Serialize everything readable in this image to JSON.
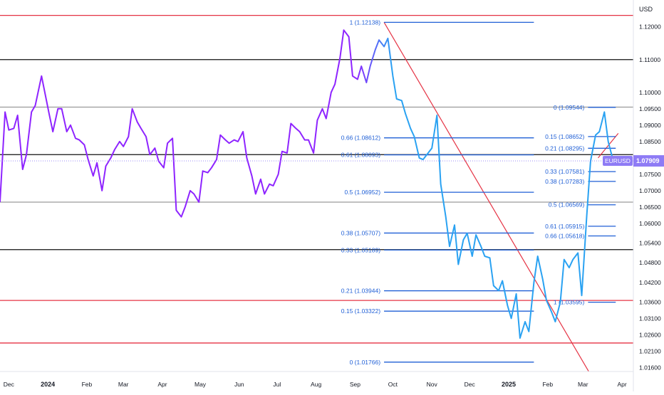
{
  "chart_data": {
    "type": "line",
    "symbol": "EURUSD",
    "currency": "USD",
    "last_price": "1.07909",
    "line_colors": {
      "start": "#8e24ff",
      "end": "#2aa2f2"
    },
    "y_axis": {
      "ylim": [
        1.0148,
        1.1282
      ],
      "ticks": [
        "1.12000",
        "1.11000",
        "1.10000",
        "1.09500",
        "1.09000",
        "1.08500",
        "1.08000",
        "1.07500",
        "1.07000",
        "1.06500",
        "1.06000",
        "1.05400",
        "1.04800",
        "1.04200",
        "1.03600",
        "1.03100",
        "1.02600",
        "1.02100",
        "1.01600"
      ]
    },
    "x_axis": {
      "xlim": [
        "2023-11-24",
        "2025-04-10"
      ],
      "ticks": [
        {
          "label": "Dec",
          "date": "2023-12-01",
          "bold": false
        },
        {
          "label": "2024",
          "date": "2024-01-01",
          "bold": true
        },
        {
          "label": "Feb",
          "date": "2024-02-01",
          "bold": false
        },
        {
          "label": "Mar",
          "date": "2024-03-01",
          "bold": false
        },
        {
          "label": "Apr",
          "date": "2024-04-01",
          "bold": false
        },
        {
          "label": "May",
          "date": "2024-05-01",
          "bold": false
        },
        {
          "label": "Jun",
          "date": "2024-06-01",
          "bold": false
        },
        {
          "label": "Jul",
          "date": "2024-07-01",
          "bold": false
        },
        {
          "label": "Aug",
          "date": "2024-08-01",
          "bold": false
        },
        {
          "label": "Sep",
          "date": "2024-09-01",
          "bold": false
        },
        {
          "label": "Oct",
          "date": "2024-10-01",
          "bold": false
        },
        {
          "label": "Nov",
          "date": "2024-11-01",
          "bold": false
        },
        {
          "label": "Dec",
          "date": "2024-12-01",
          "bold": false
        },
        {
          "label": "2025",
          "date": "2025-01-01",
          "bold": true
        },
        {
          "label": "Feb",
          "date": "2025-02-01",
          "bold": false
        },
        {
          "label": "Mar",
          "date": "2025-03-01",
          "bold": false
        },
        {
          "label": "Apr",
          "date": "2025-04-01",
          "bold": false
        }
      ]
    },
    "series": [
      {
        "points": [
          [
            "2023-11-24",
            1.0665
          ],
          [
            "2023-11-28",
            1.094
          ],
          [
            "2023-12-01",
            1.0885
          ],
          [
            "2023-12-05",
            1.089
          ],
          [
            "2023-12-08",
            1.093
          ],
          [
            "2023-12-12",
            1.0765
          ],
          [
            "2023-12-15",
            1.081
          ],
          [
            "2023-12-19",
            1.094
          ],
          [
            "2023-12-22",
            1.096
          ],
          [
            "2023-12-27",
            1.105
          ],
          [
            "2024-01-02",
            1.0935
          ],
          [
            "2024-01-05",
            1.088
          ],
          [
            "2024-01-09",
            1.095
          ],
          [
            "2024-01-12",
            1.095
          ],
          [
            "2024-01-16",
            1.088
          ],
          [
            "2024-01-19",
            1.09
          ],
          [
            "2024-01-23",
            1.086
          ],
          [
            "2024-01-26",
            1.0855
          ],
          [
            "2024-01-30",
            1.084
          ],
          [
            "2024-02-02",
            1.0795
          ],
          [
            "2024-02-06",
            1.0745
          ],
          [
            "2024-02-09",
            1.0785
          ],
          [
            "2024-02-13",
            1.07
          ],
          [
            "2024-02-16",
            1.0775
          ],
          [
            "2024-02-20",
            1.08
          ],
          [
            "2024-02-23",
            1.0825
          ],
          [
            "2024-02-27",
            1.085
          ],
          [
            "2024-03-01",
            1.0835
          ],
          [
            "2024-03-05",
            1.0865
          ],
          [
            "2024-03-08",
            1.095
          ],
          [
            "2024-03-12",
            1.091
          ],
          [
            "2024-03-15",
            1.089
          ],
          [
            "2024-03-19",
            1.0865
          ],
          [
            "2024-03-22",
            1.081
          ],
          [
            "2024-03-26",
            1.083
          ],
          [
            "2024-03-29",
            1.079
          ],
          [
            "2024-04-02",
            1.077
          ],
          [
            "2024-04-05",
            1.0845
          ],
          [
            "2024-04-09",
            1.086
          ],
          [
            "2024-04-12",
            1.064
          ],
          [
            "2024-04-16",
            1.062
          ],
          [
            "2024-04-19",
            1.065
          ],
          [
            "2024-04-23",
            1.07
          ],
          [
            "2024-04-26",
            1.069
          ],
          [
            "2024-04-30",
            1.0665
          ],
          [
            "2024-05-03",
            1.076
          ],
          [
            "2024-05-07",
            1.0755
          ],
          [
            "2024-05-10",
            1.077
          ],
          [
            "2024-05-14",
            1.0795
          ],
          [
            "2024-05-17",
            1.087
          ],
          [
            "2024-05-21",
            1.0855
          ],
          [
            "2024-05-24",
            1.0845
          ],
          [
            "2024-05-28",
            1.0855
          ],
          [
            "2024-05-31",
            1.085
          ],
          [
            "2024-06-04",
            1.088
          ],
          [
            "2024-06-07",
            1.08
          ],
          [
            "2024-06-11",
            1.0745
          ],
          [
            "2024-06-14",
            1.069
          ],
          [
            "2024-06-18",
            1.0735
          ],
          [
            "2024-06-21",
            1.069
          ],
          [
            "2024-06-25",
            1.072
          ],
          [
            "2024-06-28",
            1.0715
          ],
          [
            "2024-07-02",
            1.075
          ],
          [
            "2024-07-05",
            1.082
          ],
          [
            "2024-07-09",
            1.0815
          ],
          [
            "2024-07-12",
            1.0905
          ],
          [
            "2024-07-16",
            1.089
          ],
          [
            "2024-07-19",
            1.088
          ],
          [
            "2024-07-23",
            1.0855
          ],
          [
            "2024-07-26",
            1.0855
          ],
          [
            "2024-07-30",
            1.0815
          ],
          [
            "2024-08-02",
            1.0915
          ],
          [
            "2024-08-06",
            1.095
          ],
          [
            "2024-08-09",
            1.092
          ],
          [
            "2024-08-13",
            1.1
          ],
          [
            "2024-08-16",
            1.1025
          ],
          [
            "2024-08-20",
            1.1105
          ],
          [
            "2024-08-23",
            1.119
          ],
          [
            "2024-08-27",
            1.117
          ],
          [
            "2024-08-30",
            1.105
          ],
          [
            "2024-09-03",
            1.104
          ],
          [
            "2024-09-06",
            1.108
          ],
          [
            "2024-09-10",
            1.103
          ],
          [
            "2024-09-13",
            1.108
          ],
          [
            "2024-09-17",
            1.113
          ],
          [
            "2024-09-20",
            1.116
          ],
          [
            "2024-09-24",
            1.114
          ],
          [
            "2024-09-27",
            1.1165
          ],
          [
            "2024-10-01",
            1.105
          ],
          [
            "2024-10-04",
            1.098
          ],
          [
            "2024-10-08",
            1.0975
          ],
          [
            "2024-10-11",
            1.0935
          ],
          [
            "2024-10-15",
            1.089
          ],
          [
            "2024-10-18",
            1.0865
          ],
          [
            "2024-10-22",
            1.08
          ],
          [
            "2024-10-25",
            1.0795
          ],
          [
            "2024-10-29",
            1.0815
          ],
          [
            "2024-11-01",
            1.083
          ],
          [
            "2024-11-05",
            1.093
          ],
          [
            "2024-11-08",
            1.072
          ],
          [
            "2024-11-12",
            1.062
          ],
          [
            "2024-11-15",
            1.053
          ],
          [
            "2024-11-19",
            1.0595
          ],
          [
            "2024-11-22",
            1.0475
          ],
          [
            "2024-11-26",
            1.055
          ],
          [
            "2024-11-29",
            1.057
          ],
          [
            "2024-12-03",
            1.05
          ],
          [
            "2024-12-06",
            1.0565
          ],
          [
            "2024-12-10",
            1.053
          ],
          [
            "2024-12-13",
            1.05
          ],
          [
            "2024-12-17",
            1.0495
          ],
          [
            "2024-12-20",
            1.041
          ],
          [
            "2024-12-24",
            1.0395
          ],
          [
            "2024-12-27",
            1.0425
          ],
          [
            "2024-12-31",
            1.035
          ],
          [
            "2025-01-03",
            1.031
          ],
          [
            "2025-01-07",
            1.0385
          ],
          [
            "2025-01-10",
            1.025
          ],
          [
            "2025-01-14",
            1.03
          ],
          [
            "2025-01-17",
            1.027
          ],
          [
            "2025-01-21",
            1.042
          ],
          [
            "2025-01-24",
            1.05
          ],
          [
            "2025-01-28",
            1.043
          ],
          [
            "2025-01-31",
            1.0365
          ],
          [
            "2025-02-04",
            1.033
          ],
          [
            "2025-02-07",
            1.03
          ],
          [
            "2025-02-11",
            1.036
          ],
          [
            "2025-02-14",
            1.049
          ],
          [
            "2025-02-18",
            1.0465
          ],
          [
            "2025-02-21",
            1.049
          ],
          [
            "2025-02-25",
            1.051
          ],
          [
            "2025-02-28",
            1.038
          ],
          [
            "2025-03-04",
            1.0625
          ],
          [
            "2025-03-07",
            1.079
          ],
          [
            "2025-03-11",
            1.087
          ],
          [
            "2025-03-14",
            1.088
          ],
          [
            "2025-03-18",
            1.094
          ],
          [
            "2025-03-21",
            1.085
          ],
          [
            "2025-03-25",
            1.0791
          ]
        ]
      }
    ],
    "horizontal_lines": [
      {
        "value": 1.1235,
        "color": "#e53344"
      },
      {
        "value": 1.11,
        "color": "#111111"
      },
      {
        "value": 1.0955,
        "color": "#9a9a9a"
      },
      {
        "value": 1.081,
        "color": "#111111"
      },
      {
        "value": 1.0665,
        "color": "#9a9a9a"
      },
      {
        "value": 1.052,
        "color": "#111111"
      },
      {
        "value": 1.0365,
        "color": "#e53344"
      },
      {
        "value": 1.0235,
        "color": "#e53344"
      }
    ],
    "trendlines": [
      {
        "from": [
          "2024-09-24",
          1.1214
        ],
        "to": [
          "2025-03-06",
          1.0145
        ],
        "color": "#e53344"
      },
      {
        "from": [
          "2025-03-13",
          1.08
        ],
        "to": [
          "2025-03-29",
          1.0875
        ],
        "color": "#e53344"
      }
    ],
    "fib_sets": [
      {
        "from_date": "2024-09-24",
        "to_date": "2025-01-21",
        "color": "#1f5fd6",
        "levels": [
          {
            "text": "1 (1.12138)",
            "value": 1.12138
          },
          {
            "text": "0.66 (1.08612)",
            "value": 1.08612
          },
          {
            "text": "0.61 (1.08093)",
            "value": 1.08093
          },
          {
            "text": "0.5 (1.06952)",
            "value": 1.06952
          },
          {
            "text": "0.38 (1.05707)",
            "value": 1.05707
          },
          {
            "text": "0.33 (1.05189)",
            "value": 1.05189
          },
          {
            "text": "0.21 (1.03944)",
            "value": 1.03944
          },
          {
            "text": "0.15 (1.03322)",
            "value": 1.03322
          },
          {
            "text": "0 (1.01766)",
            "value": 1.01766
          }
        ]
      },
      {
        "from_date": "2025-03-05",
        "to_date": "2025-03-27",
        "color": "#1f5fd6",
        "levels": [
          {
            "text": "0 (1.09544)",
            "value": 1.09544
          },
          {
            "text": "0.15 (1.08652)",
            "value": 1.08652
          },
          {
            "text": "0.21 (1.08295)",
            "value": 1.08295
          },
          {
            "text": "0.33 (1.07581)",
            "value": 1.07581
          },
          {
            "text": "0.38 (1.07283)",
            "value": 1.07283
          },
          {
            "text": "0.5 (1.06569)",
            "value": 1.06569
          },
          {
            "text": "0.61 (1.05915)",
            "value": 1.05915
          },
          {
            "text": "0.66 (1.05618)",
            "value": 1.05618
          },
          {
            "text": "1 (1.03595)",
            "value": 1.03595
          }
        ]
      }
    ]
  }
}
